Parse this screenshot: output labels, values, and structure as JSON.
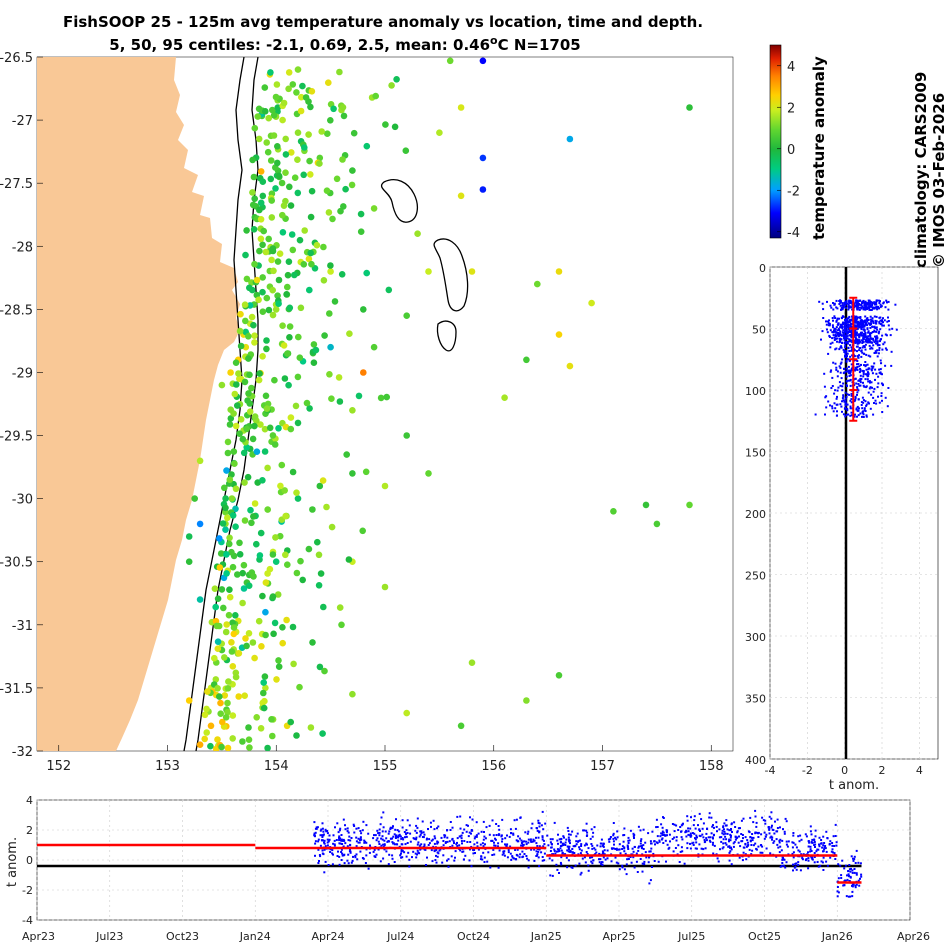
{
  "title": {
    "line1": "FishSOOP 25 - 125m avg temperature anomaly vs location, time and depth.",
    "line2": "5, 50, 95 centiles: -2.1, 0.69, 2.5, mean: 0.46°C N=1705"
  },
  "side_labels": {
    "climatology": "climatology: CARS2009",
    "imos": "© IMOS 03-Feb-2026"
  },
  "colors": {
    "land": "#f9c896",
    "dots": "#0000ff",
    "mean_line": "#ff0000",
    "zero_line": "#000000"
  },
  "chart_data": [
    {
      "type": "scatter",
      "name": "map",
      "xlim": [
        151.8,
        158.2
      ],
      "ylim": [
        -32,
        -26.5
      ],
      "xticks": [
        152,
        153,
        154,
        155,
        156,
        157,
        158
      ],
      "xtick_labels": [
        "152",
        "153",
        "154",
        "155",
        "156",
        "157",
        "158"
      ],
      "yticks": [
        -26.5,
        -27,
        -27.5,
        -28,
        -28.5,
        -29,
        -29.5,
        -30,
        -30.5,
        -31,
        -31.5,
        -32
      ],
      "ytick_labels": [
        "-26.5",
        "-27",
        "-27.5",
        "-28",
        "-28.5",
        "-29",
        "-29.5",
        "-30",
        "-30.5",
        "-31",
        "-31.5",
        "-32"
      ],
      "color_by": "temperature anomaly (°C)",
      "points": [
        [
          155.9,
          -26.53,
          -3.2
        ],
        [
          154.2,
          -26.6,
          1.2
        ],
        [
          155.6,
          -26.53,
          1.0
        ],
        [
          157.8,
          -26.9,
          0.2
        ],
        [
          156.7,
          -27.15,
          -1.8
        ],
        [
          154.6,
          -26.92,
          1.4
        ],
        [
          155.5,
          -27.1,
          1.6
        ],
        [
          155.7,
          -26.9,
          2.0
        ],
        [
          155.9,
          -27.3,
          -2.8
        ],
        [
          155.9,
          -27.55,
          -3.0
        ],
        [
          155.7,
          -27.6,
          2.1
        ],
        [
          154.2,
          -27.1,
          1.3
        ],
        [
          154.4,
          -27.3,
          0.8
        ],
        [
          154.7,
          -27.4,
          0.3
        ],
        [
          154.9,
          -27.7,
          1.1
        ],
        [
          155.3,
          -27.9,
          1.4
        ],
        [
          155.4,
          -28.2,
          1.8
        ],
        [
          155.8,
          -28.2,
          2.1
        ],
        [
          156.4,
          -28.3,
          1.0
        ],
        [
          156.6,
          -28.2,
          2.3
        ],
        [
          156.6,
          -28.7,
          2.5
        ],
        [
          156.9,
          -28.45,
          1.9
        ],
        [
          156.7,
          -28.95,
          2.2
        ],
        [
          156.3,
          -28.9,
          0.5
        ],
        [
          156.1,
          -29.2,
          1.5
        ],
        [
          155.2,
          -29.5,
          0.4
        ],
        [
          155.4,
          -29.8,
          0.9
        ],
        [
          155.0,
          -29.9,
          1.6
        ],
        [
          154.7,
          -29.8,
          0.3
        ],
        [
          154.8,
          -28.5,
          0.2
        ],
        [
          155.2,
          -28.55,
          0.6
        ],
        [
          154.9,
          -28.8,
          0.7
        ],
        [
          154.7,
          -29.3,
          1.4
        ],
        [
          154.8,
          -29.0,
          3.5
        ],
        [
          154.5,
          -28.8,
          -1.5
        ],
        [
          154.7,
          -30.5,
          1.8
        ],
        [
          155.0,
          -30.7,
          1.4
        ],
        [
          154.6,
          -31.0,
          0.8
        ],
        [
          154.7,
          -31.55,
          1.3
        ],
        [
          155.2,
          -31.7,
          1.7
        ],
        [
          155.7,
          -31.8,
          0.6
        ],
        [
          156.3,
          -31.6,
          1.2
        ],
        [
          156.6,
          -31.4,
          0.6
        ],
        [
          155.8,
          -31.3,
          1.4
        ],
        [
          157.1,
          -30.1,
          0.7
        ],
        [
          157.4,
          -30.05,
          0.3
        ],
        [
          157.5,
          -30.2,
          0.6
        ],
        [
          157.8,
          -30.05,
          0.9
        ],
        [
          153.7,
          -28.7,
          2.4
        ],
        [
          153.65,
          -28.9,
          2.6
        ],
        [
          153.72,
          -28.8,
          2.2
        ],
        [
          153.58,
          -29.0,
          2.5
        ],
        [
          153.66,
          -29.05,
          1.9
        ],
        [
          153.5,
          -29.1,
          1.3
        ],
        [
          153.3,
          -29.7,
          1.6
        ],
        [
          153.25,
          -30.0,
          0.4
        ],
        [
          153.2,
          -30.3,
          -0.3
        ],
        [
          153.3,
          -30.2,
          -2.2
        ],
        [
          153.2,
          -30.5,
          0.2
        ],
        [
          153.3,
          -30.8,
          -1.2
        ],
        [
          153.5,
          -31.2,
          0.6
        ],
        [
          153.4,
          -31.5,
          1.8
        ],
        [
          153.2,
          -31.6,
          2.6
        ],
        [
          153.4,
          -31.8,
          2.9
        ],
        [
          153.3,
          -31.95,
          3.0
        ],
        [
          153.6,
          -31.9,
          1.5
        ],
        [
          154.1,
          -31.8,
          2.3
        ],
        [
          153.9,
          -31.5,
          1.6
        ],
        [
          154.2,
          -29.4,
          -0.2
        ],
        [
          154.2,
          -30.0,
          -0.5
        ],
        [
          154.0,
          -30.5,
          -0.7
        ],
        [
          153.9,
          -30.9,
          -1.8
        ],
        [
          154.3,
          -30.4,
          0.4
        ],
        [
          154.4,
          -29.9,
          0.2
        ],
        [
          154.0,
          -28.5,
          1.4
        ],
        [
          154.3,
          -28.1,
          2.1
        ],
        [
          154.5,
          -28.2,
          1.8
        ]
      ]
    },
    {
      "type": "scatter",
      "name": "depth profile",
      "xlabel": "t anom.",
      "xlim": [
        -4,
        5
      ],
      "ylim": [
        400,
        0
      ],
      "xticks": [
        -4,
        -2,
        0,
        2,
        4
      ],
      "xtick_labels": [
        "-4",
        "-2",
        "0",
        "2",
        "4"
      ],
      "yticks": [
        0,
        50,
        100,
        150,
        200,
        250,
        300,
        350,
        400
      ],
      "ytick_labels": [
        "0",
        "50",
        "100",
        "150",
        "200",
        "250",
        "300",
        "350",
        "400"
      ],
      "mean_profile": {
        "x": 0.46,
        "depth_top": 25,
        "depth_bottom": 125,
        "ticks": [
          25,
          50,
          75,
          100,
          125
        ]
      }
    },
    {
      "type": "scatter",
      "name": "time series",
      "ylabel": "t anom.",
      "ylim": [
        -4,
        4
      ],
      "yticks": [
        -4,
        -2,
        0,
        2,
        4
      ],
      "ytick_labels": [
        "-4",
        "-2",
        "0",
        "2",
        "4"
      ],
      "xticks": [
        "Apr23",
        "Jul23",
        "Oct23",
        "Jan24",
        "Apr24",
        "Jul24",
        "Oct24",
        "Jan25",
        "Apr25",
        "Jul25",
        "Oct25",
        "Jan26",
        "Apr26"
      ],
      "data_start": "Apr24",
      "data_end": "Feb26",
      "segments": [
        {
          "from": "Apr23",
          "to": "Jan24",
          "value": 1.0
        },
        {
          "from": "Jan24",
          "to": "Jan25",
          "value": 0.8
        },
        {
          "from": "Jan25",
          "to": "Jan26",
          "value": 0.3
        },
        {
          "from": "Jan26",
          "to": "Feb26",
          "value": -1.5
        }
      ]
    }
  ],
  "colorbar": {
    "label": "temperature anomaly",
    "range": [
      -4.3,
      5
    ],
    "ticks": [
      4,
      2,
      0,
      -2,
      -4
    ],
    "tick_labels": [
      "4",
      "2",
      "0",
      "-2",
      "-4"
    ]
  }
}
